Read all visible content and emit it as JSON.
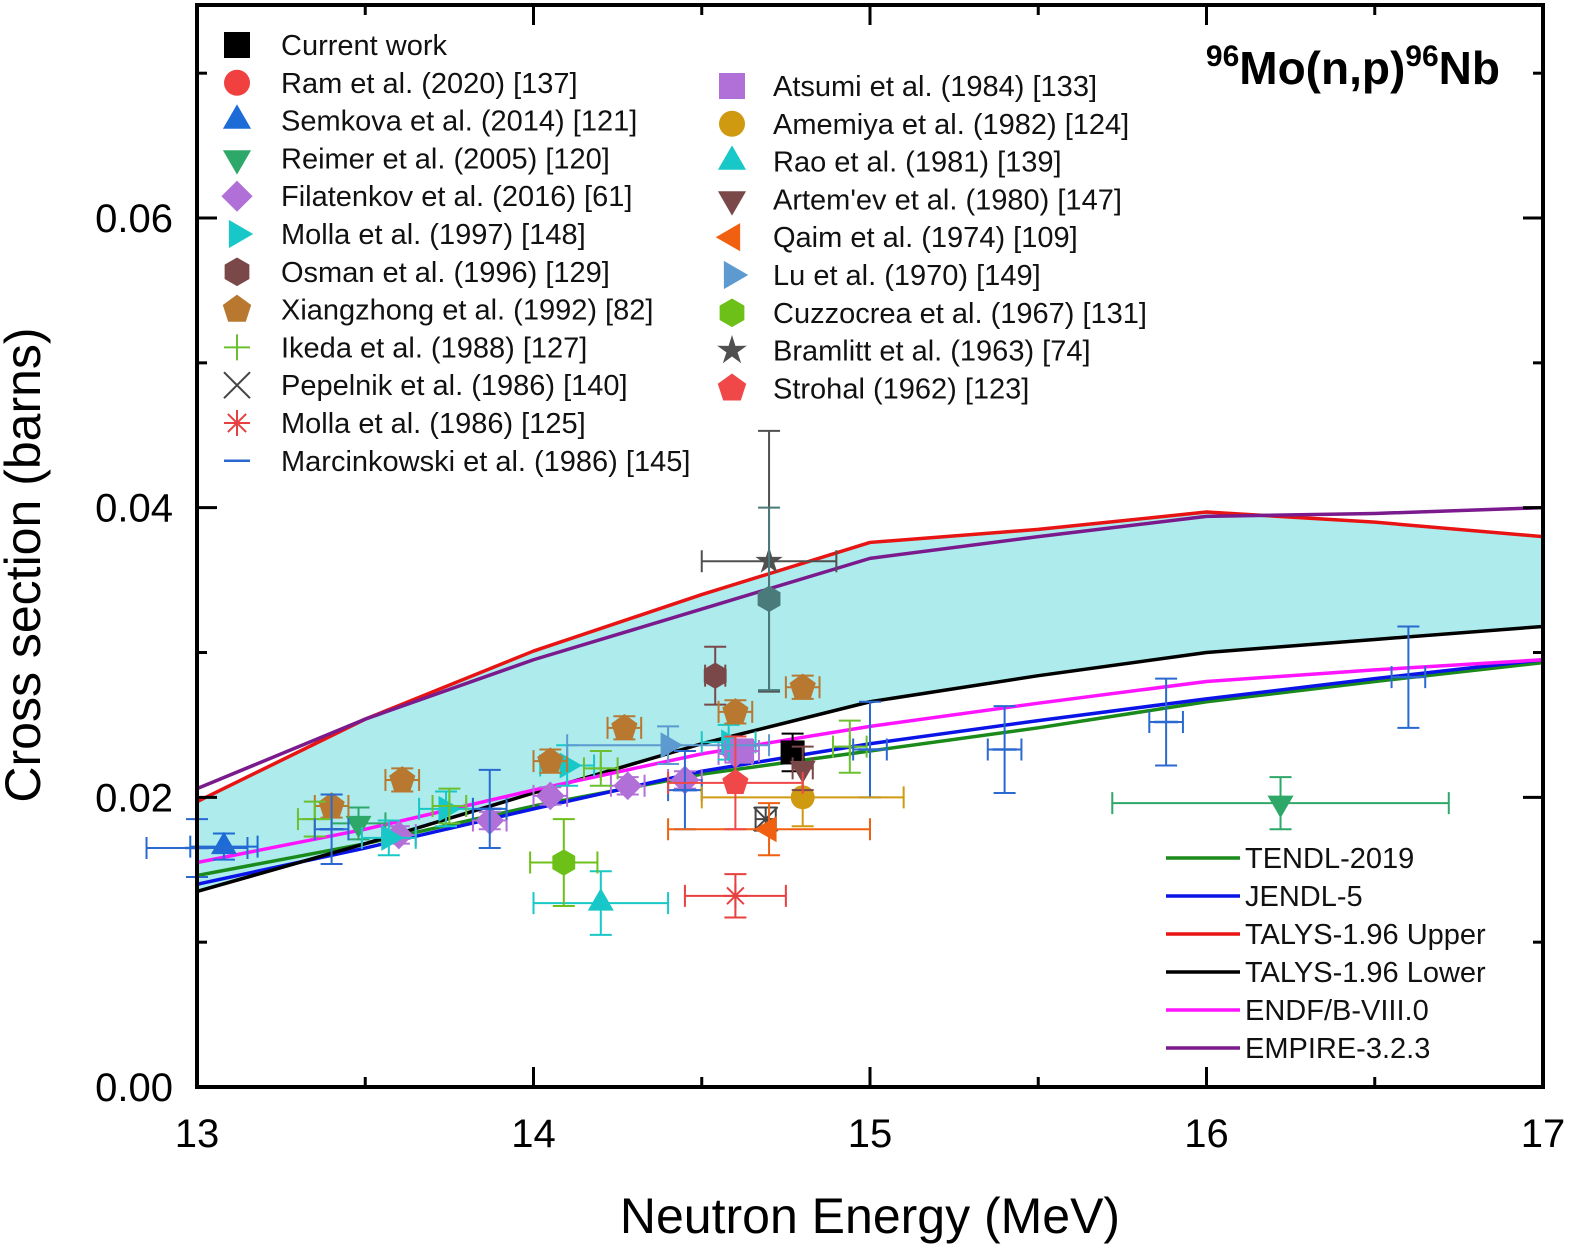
{
  "chart_data": {
    "type": "scatter",
    "title": "96Mo(n,p)96Nb",
    "title_parts": {
      "mass1": "96",
      "reaction": "Mo(n,p)",
      "mass2": "96",
      "product": "Nb"
    },
    "xlabel": "Neutron Energy (MeV)",
    "ylabel": "Cross section (barns)",
    "xlim": [
      13,
      17
    ],
    "ylim": [
      0,
      0.075
    ],
    "xticks": [
      13,
      14,
      15,
      16,
      17
    ],
    "xtick_labels": [
      "13",
      "14",
      "15",
      "16",
      "17"
    ],
    "yticks": [
      0,
      0.02,
      0.04,
      0.06
    ],
    "ytick_labels": [
      "0.00",
      "0.02",
      "0.04",
      "0.06"
    ],
    "grid": false,
    "band": {
      "name": "TALYS-1.96 uncertainty band",
      "color": "#9fe8ea",
      "between": [
        "TALYS-1.96 Upper",
        "TALYS-1.96 Lower"
      ]
    },
    "curves": [
      {
        "name": "TENDL-2019",
        "color": "#1a8a1a",
        "x": [
          13,
          13.5,
          14,
          14.5,
          15,
          15.5,
          16,
          16.5,
          17
        ],
        "y": [
          0.0146,
          0.0168,
          0.0194,
          0.0216,
          0.0232,
          0.0248,
          0.0266,
          0.028,
          0.0293
        ]
      },
      {
        "name": "JENDL-5",
        "color": "#0a14e6",
        "x": [
          13,
          13.5,
          14,
          14.5,
          15,
          15.5,
          16,
          16.5,
          17
        ],
        "y": [
          0.014,
          0.0165,
          0.0192,
          0.0218,
          0.0237,
          0.0253,
          0.0268,
          0.0282,
          0.0295
        ]
      },
      {
        "name": "TALYS-1.96 Upper",
        "color": "#e81414",
        "x": [
          13,
          13.5,
          14,
          14.5,
          15,
          15.5,
          16,
          16.5,
          17
        ],
        "y": [
          0.0197,
          0.0254,
          0.0301,
          0.034,
          0.0376,
          0.0385,
          0.0397,
          0.039,
          0.038
        ]
      },
      {
        "name": "TALYS-1.96 Lower",
        "color": "#000000",
        "x": [
          13,
          13.5,
          14,
          14.5,
          15,
          15.5,
          16,
          16.5,
          17
        ],
        "y": [
          0.0135,
          0.0168,
          0.0203,
          0.0237,
          0.0266,
          0.0284,
          0.03,
          0.0309,
          0.0318
        ]
      },
      {
        "name": "ENDF/B-VIII.0",
        "color": "#ff14ff",
        "x": [
          13,
          13.5,
          14,
          14.5,
          15,
          15.5,
          16,
          16.5,
          17
        ],
        "y": [
          0.0155,
          0.0178,
          0.0205,
          0.023,
          0.0249,
          0.0265,
          0.028,
          0.0288,
          0.0295
        ]
      },
      {
        "name": "EMPIRE-3.2.3",
        "color": "#7a1a8c",
        "x": [
          13,
          13.5,
          14,
          14.5,
          15,
          15.5,
          16,
          16.5,
          17
        ],
        "y": [
          0.0206,
          0.0254,
          0.0295,
          0.033,
          0.0365,
          0.038,
          0.0394,
          0.0396,
          0.04
        ]
      }
    ],
    "series": [
      {
        "name": "Current work",
        "marker": "square",
        "color": "#000000",
        "points": [
          {
            "x": 14.77,
            "y": 0.0231,
            "xerr": 0.03,
            "yerr": 0.0013
          }
        ]
      },
      {
        "name": "Ram et al. (2020) [137]",
        "marker": "circle",
        "color": "#f04040",
        "points": []
      },
      {
        "name": "Semkova et al. (2014) [121]",
        "marker": "triangle-up",
        "color": "#1c6bd6",
        "points": [
          {
            "x": 13.08,
            "y": 0.0166,
            "xerr": 0.1,
            "yerr": 0.0009
          }
        ]
      },
      {
        "name": "Reimer et al. (2005) [120]",
        "marker": "triangle-down",
        "color": "#2ea868",
        "points": [
          {
            "x": 13.48,
            "y": 0.0182,
            "xerr": 0.08,
            "yerr": 0.0011
          },
          {
            "x": 16.22,
            "y": 0.0196,
            "xerr": 0.5,
            "yerr": 0.0018
          }
        ]
      },
      {
        "name": "Filatenkov et al. (2016) [61]",
        "marker": "diamond",
        "color": "#b070d8",
        "points": [
          {
            "x": 13.6,
            "y": 0.0174,
            "xerr": 0.05,
            "yerr": 0.0006
          },
          {
            "x": 13.87,
            "y": 0.0184,
            "xerr": 0.05,
            "yerr": 0.0006
          },
          {
            "x": 14.05,
            "y": 0.0201,
            "xerr": 0.05,
            "yerr": 0.0006
          },
          {
            "x": 14.28,
            "y": 0.0208,
            "xerr": 0.05,
            "yerr": 0.0006
          },
          {
            "x": 14.45,
            "y": 0.0212,
            "xerr": 0.05,
            "yerr": 0.0006
          },
          {
            "x": 14.6,
            "y": 0.023,
            "xerr": 0.05,
            "yerr": 0.0006
          }
        ]
      },
      {
        "name": "Molla et al. (1997) [148]",
        "marker": "triangle-right",
        "color": "#18c8c8",
        "points": [
          {
            "x": 13.57,
            "y": 0.0172,
            "xerr": 0.08,
            "yerr": 0.0012
          },
          {
            "x": 13.74,
            "y": 0.0192,
            "xerr": 0.08,
            "yerr": 0.0012
          },
          {
            "x": 14.1,
            "y": 0.0222,
            "xerr": 0.08,
            "yerr": 0.0014
          },
          {
            "x": 14.58,
            "y": 0.0238,
            "xerr": 0.08,
            "yerr": 0.0012
          }
        ]
      },
      {
        "name": "Osman et al. (1996) [129]",
        "marker": "hexagon",
        "color": "#7a4848",
        "points": [
          {
            "x": 14.54,
            "y": 0.0284,
            "xerr": 0.03,
            "yerr": 0.002
          }
        ]
      },
      {
        "name": "Xiangzhong et al. (1992) [82]",
        "marker": "pentagon",
        "color": "#b87830",
        "points": [
          {
            "x": 13.4,
            "y": 0.0194,
            "xerr": 0.05,
            "yerr": 0.0008
          },
          {
            "x": 13.61,
            "y": 0.0212,
            "xerr": 0.05,
            "yerr": 0.0008
          },
          {
            "x": 14.05,
            "y": 0.0225,
            "xerr": 0.05,
            "yerr": 0.0008
          },
          {
            "x": 14.27,
            "y": 0.0248,
            "xerr": 0.05,
            "yerr": 0.0008
          },
          {
            "x": 14.6,
            "y": 0.0259,
            "xerr": 0.05,
            "yerr": 0.0008
          },
          {
            "x": 14.8,
            "y": 0.0276,
            "xerr": 0.05,
            "yerr": 0.0008
          }
        ]
      },
      {
        "name": "Ikeda et al. (1988) [127]",
        "marker": "plus",
        "color": "#6cc030",
        "points": [
          {
            "x": 13.35,
            "y": 0.0185,
            "xerr": 0.05,
            "yerr": 0.0012
          },
          {
            "x": 13.75,
            "y": 0.0194,
            "xerr": 0.05,
            "yerr": 0.0012
          },
          {
            "x": 14.2,
            "y": 0.022,
            "xerr": 0.05,
            "yerr": 0.0012
          },
          {
            "x": 14.94,
            "y": 0.0235,
            "xerr": 0.05,
            "yerr": 0.0018
          }
        ]
      },
      {
        "name": "Pepelnik et al. (1986) [140]",
        "marker": "x",
        "color": "#444444",
        "points": [
          {
            "x": 14.69,
            "y": 0.0185,
            "xerr": 0.03,
            "yerr": 0.0008
          }
        ]
      },
      {
        "name": "Molla et al. (1986) [125]",
        "marker": "asterisk",
        "color": "#e84040",
        "points": [
          {
            "x": 14.6,
            "y": 0.0132,
            "xerr": 0.15,
            "yerr": 0.0015
          }
        ]
      },
      {
        "name": "Marcinkowski et al. (1986) [145]",
        "marker": "dash",
        "color": "#2a6ad0",
        "points": [
          {
            "x": 13.0,
            "y": 0.0165,
            "xerr": 0.15,
            "yerr": 0.002
          },
          {
            "x": 13.4,
            "y": 0.0178,
            "xerr": 0.05,
            "yerr": 0.0024
          },
          {
            "x": 13.87,
            "y": 0.0192,
            "xerr": 0.05,
            "yerr": 0.0027
          },
          {
            "x": 14.45,
            "y": 0.0205,
            "xerr": 0.05,
            "yerr": 0.0027
          },
          {
            "x": 15.0,
            "y": 0.0233,
            "xerr": 0.05,
            "yerr": 0.0033
          },
          {
            "x": 15.4,
            "y": 0.0233,
            "xerr": 0.05,
            "yerr": 0.003
          },
          {
            "x": 15.88,
            "y": 0.0252,
            "xerr": 0.05,
            "yerr": 0.003
          },
          {
            "x": 16.6,
            "y": 0.0283,
            "xerr": 0.05,
            "yerr": 0.0035
          }
        ]
      },
      {
        "name": "Atsumi et al. (1984) [133]",
        "marker": "square",
        "color": "#b070d8",
        "points": [
          {
            "x": 14.62,
            "y": 0.0232,
            "xerr": 0.05,
            "yerr": 0.0008
          }
        ]
      },
      {
        "name": "Amemiya et al. (1982) [124]",
        "marker": "circle",
        "color": "#d09a10",
        "points": [
          {
            "x": 14.8,
            "y": 0.02,
            "xerr": 0.3,
            "yerr": 0.002
          }
        ]
      },
      {
        "name": "Rao et al. (1981) [139]",
        "marker": "triangle-up",
        "color": "#18c8c8",
        "points": [
          {
            "x": 14.2,
            "y": 0.0127,
            "xerr": 0.2,
            "yerr": 0.0022
          }
        ]
      },
      {
        "name": "Artem'ev et al. (1980) [147]",
        "marker": "triangle-down",
        "color": "#7a4848",
        "points": [
          {
            "x": 14.8,
            "y": 0.022,
            "xerr": 0.03,
            "yerr": 0.0015
          }
        ]
      },
      {
        "name": "Qaim et al. (1974) [109]",
        "marker": "triangle-left",
        "color": "#f06010",
        "points": [
          {
            "x": 14.7,
            "y": 0.0178,
            "xerr": 0.3,
            "yerr": 0.0018
          }
        ]
      },
      {
        "name": "Lu et al. (1970) [149]",
        "marker": "triangle-right",
        "color": "#5c9ad0",
        "points": [
          {
            "x": 14.4,
            "y": 0.0236,
            "xerr": 0.3,
            "yerr": 0.0013
          }
        ]
      },
      {
        "name": "Cuzzocrea et al. (1967) [131]",
        "marker": "hexagon",
        "color": "#6cc018",
        "points": [
          {
            "x": 14.09,
            "y": 0.0155,
            "xerr": 0.1,
            "yerr": 0.003
          }
        ]
      },
      {
        "name": "Bramlitt et al. (1963) [74]",
        "marker": "star",
        "color": "#505050",
        "points": [
          {
            "x": 14.7,
            "y": 0.0363,
            "xerr": 0.2,
            "yerr": 0.009
          }
        ]
      },
      {
        "name": "Strohal (1962) [123]",
        "marker": "pentagon",
        "color": "#f04848",
        "points": [
          {
            "x": 14.6,
            "y": 0.021,
            "xerr": 0.2,
            "yerr": 0.0032
          }
        ]
      },
      {
        "name": "Teal hexagon (unlabeled)",
        "marker": "hexagon",
        "color": "#4a7a7a",
        "points": [
          {
            "x": 14.7,
            "y": 0.0337,
            "xerr": 0.0,
            "yerr": 0.0063
          }
        ]
      }
    ],
    "legend": {
      "markers_col1": [
        "Current work",
        "Ram et al. (2020) [137]",
        "Semkova et al. (2014) [121]",
        "Reimer et al. (2005) [120]",
        "Filatenkov et al. (2016) [61]",
        "Molla et al. (1997) [148]",
        "Osman et al. (1996) [129]",
        "Xiangzhong et al. (1992) [82]",
        "Ikeda et al. (1988) [127]",
        "Pepelnik et al. (1986) [140]",
        "Molla et al. (1986) [125]",
        "Marcinkowski et al. (1986) [145]"
      ],
      "markers_col2": [
        "Atsumi et al. (1984) [133]",
        "Amemiya et al. (1982) [124]",
        "Rao et al. (1981) [139]",
        "Artem'ev et al. (1980) [147]",
        "Qaim et al. (1974) [109]",
        "Lu et al. (1970) [149]",
        "Cuzzocrea et al. (1967) [131]",
        "Bramlitt et al. (1963) [74]",
        "Strohal (1962) [123]"
      ],
      "lines": [
        "TENDL-2019",
        "JENDL-5",
        "TALYS-1.96 Upper",
        "TALYS-1.96 Lower",
        "ENDF/B-VIII.0",
        "EMPIRE-3.2.3"
      ],
      "placement_markers": "top-left",
      "placement_lines": "bottom-right"
    }
  }
}
